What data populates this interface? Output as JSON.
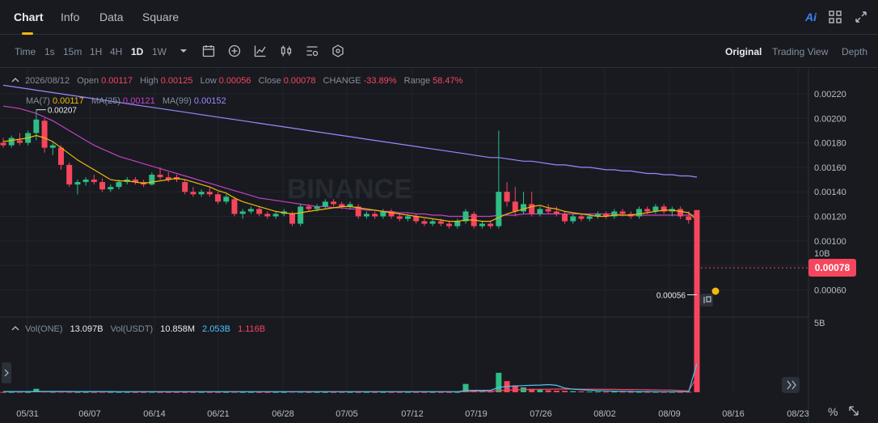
{
  "tabs": [
    {
      "label": "Chart",
      "active": true
    },
    {
      "label": "Info",
      "active": false
    },
    {
      "label": "Data",
      "active": false
    },
    {
      "label": "Square",
      "active": false
    }
  ],
  "top_icons": {
    "ai": "Ai"
  },
  "toolbar": {
    "intervals": [
      {
        "label": "Time",
        "active": false
      },
      {
        "label": "1s",
        "active": false
      },
      {
        "label": "15m",
        "active": false
      },
      {
        "label": "1H",
        "active": false
      },
      {
        "label": "4H",
        "active": false
      },
      {
        "label": "1D",
        "active": true
      },
      {
        "label": "1W",
        "active": false
      }
    ],
    "views": [
      {
        "label": "Original",
        "active": true
      },
      {
        "label": "Trading View",
        "active": false
      },
      {
        "label": "Depth",
        "active": false
      }
    ]
  },
  "ohlc": {
    "date": "2026/08/12",
    "open_label": "Open",
    "open": "0.00117",
    "high_label": "High",
    "high": "0.00125",
    "low_label": "Low",
    "low": "0.00056",
    "close_label": "Close",
    "close": "0.00078",
    "change_label": "CHANGE",
    "change": "-33.89%",
    "range_label": "Range",
    "range": "58.47%"
  },
  "ma": {
    "ma7_label": "MA(7)",
    "ma7": "0.00117",
    "ma25_label": "MA(25)",
    "ma25": "0.00121",
    "ma99_label": "MA(99)",
    "ma99": "0.00152"
  },
  "vol": {
    "label1": "Vol(ONE)",
    "value1": "13.097B",
    "label2": "Vol(USDT)",
    "value2": "10.858M",
    "ma1": "2.053B",
    "ma2": "1.116B"
  },
  "current_price": "0.00078",
  "colors": {
    "up": "#2ebd85",
    "down": "#f6465d",
    "ma7": "#f0b90b",
    "ma25": "#c640c6",
    "ma99": "#9a88ff",
    "accent": "#f0b90b"
  },
  "chart_data": {
    "type": "candlestick",
    "y_ticks": [
      "0.00220",
      "0.00200",
      "0.00180",
      "0.00160",
      "0.00140",
      "0.00120",
      "0.00100",
      "0.00080",
      "0.00060"
    ],
    "vol_ticks": [
      "10B",
      "5B"
    ],
    "x_ticks": [
      "05/31",
      "06/07",
      "06/14",
      "06/21",
      "06/28",
      "07/05",
      "07/12",
      "07/19",
      "07/26",
      "08/02",
      "08/09",
      "08/16",
      "08/23"
    ],
    "annotations": {
      "high_label": "0.00207",
      "low_label": "0.00056"
    },
    "candles": [
      {
        "o": 0.0018,
        "h": 0.00184,
        "l": 0.00176,
        "c": 0.00178
      },
      {
        "o": 0.00178,
        "h": 0.00186,
        "l": 0.00176,
        "c": 0.00184
      },
      {
        "o": 0.00182,
        "h": 0.00188,
        "l": 0.00178,
        "c": 0.0018
      },
      {
        "o": 0.0018,
        "h": 0.0019,
        "l": 0.00178,
        "c": 0.00188
      },
      {
        "o": 0.00188,
        "h": 0.00207,
        "l": 0.00182,
        "c": 0.00199
      },
      {
        "o": 0.00198,
        "h": 0.002,
        "l": 0.00172,
        "c": 0.00176
      },
      {
        "o": 0.00176,
        "h": 0.0018,
        "l": 0.0017,
        "c": 0.00178
      },
      {
        "o": 0.00176,
        "h": 0.00178,
        "l": 0.00158,
        "c": 0.00162
      },
      {
        "o": 0.00162,
        "h": 0.00164,
        "l": 0.00144,
        "c": 0.00146
      },
      {
        "o": 0.00146,
        "h": 0.0015,
        "l": 0.00138,
        "c": 0.00148
      },
      {
        "o": 0.00148,
        "h": 0.00152,
        "l": 0.00145,
        "c": 0.0015
      },
      {
        "o": 0.0015,
        "h": 0.00154,
        "l": 0.00146,
        "c": 0.00148
      },
      {
        "o": 0.00148,
        "h": 0.00151,
        "l": 0.0014,
        "c": 0.00142
      },
      {
        "o": 0.00142,
        "h": 0.00146,
        "l": 0.0014,
        "c": 0.00144
      },
      {
        "o": 0.00144,
        "h": 0.0015,
        "l": 0.00142,
        "c": 0.00148
      },
      {
        "o": 0.00148,
        "h": 0.00152,
        "l": 0.00146,
        "c": 0.0015
      },
      {
        "o": 0.0015,
        "h": 0.00152,
        "l": 0.00146,
        "c": 0.00148
      },
      {
        "o": 0.00148,
        "h": 0.0015,
        "l": 0.00144,
        "c": 0.00146
      },
      {
        "o": 0.00146,
        "h": 0.00156,
        "l": 0.00145,
        "c": 0.00154
      },
      {
        "o": 0.00154,
        "h": 0.0016,
        "l": 0.0015,
        "c": 0.00152
      },
      {
        "o": 0.00152,
        "h": 0.00156,
        "l": 0.00148,
        "c": 0.0015
      },
      {
        "o": 0.00152,
        "h": 0.00154,
        "l": 0.00148,
        "c": 0.0015
      },
      {
        "o": 0.00148,
        "h": 0.0015,
        "l": 0.00138,
        "c": 0.0014
      },
      {
        "o": 0.0014,
        "h": 0.00144,
        "l": 0.00136,
        "c": 0.00138
      },
      {
        "o": 0.00138,
        "h": 0.00142,
        "l": 0.00136,
        "c": 0.0014
      },
      {
        "o": 0.0014,
        "h": 0.00144,
        "l": 0.00136,
        "c": 0.00138
      },
      {
        "o": 0.00138,
        "h": 0.0014,
        "l": 0.0013,
        "c": 0.00132
      },
      {
        "o": 0.00132,
        "h": 0.00138,
        "l": 0.0013,
        "c": 0.00136
      },
      {
        "o": 0.00134,
        "h": 0.00136,
        "l": 0.0012,
        "c": 0.00122
      },
      {
        "o": 0.00122,
        "h": 0.00126,
        "l": 0.00118,
        "c": 0.00124
      },
      {
        "o": 0.00124,
        "h": 0.00128,
        "l": 0.00122,
        "c": 0.00126
      },
      {
        "o": 0.00126,
        "h": 0.00128,
        "l": 0.0012,
        "c": 0.00122
      },
      {
        "o": 0.00122,
        "h": 0.00124,
        "l": 0.00118,
        "c": 0.0012
      },
      {
        "o": 0.0012,
        "h": 0.00124,
        "l": 0.00118,
        "c": 0.00122
      },
      {
        "o": 0.00122,
        "h": 0.00126,
        "l": 0.0012,
        "c": 0.00124
      },
      {
        "o": 0.00122,
        "h": 0.00124,
        "l": 0.00112,
        "c": 0.00114
      },
      {
        "o": 0.00114,
        "h": 0.0013,
        "l": 0.00112,
        "c": 0.00128
      },
      {
        "o": 0.00128,
        "h": 0.0013,
        "l": 0.00124,
        "c": 0.00126
      },
      {
        "o": 0.00126,
        "h": 0.0013,
        "l": 0.00124,
        "c": 0.00128
      },
      {
        "o": 0.00128,
        "h": 0.00134,
        "l": 0.00126,
        "c": 0.00132
      },
      {
        "o": 0.00132,
        "h": 0.00134,
        "l": 0.00128,
        "c": 0.0013
      },
      {
        "o": 0.0013,
        "h": 0.00132,
        "l": 0.00126,
        "c": 0.00128
      },
      {
        "o": 0.00128,
        "h": 0.00132,
        "l": 0.00126,
        "c": 0.0013
      },
      {
        "o": 0.00128,
        "h": 0.0013,
        "l": 0.00118,
        "c": 0.0012
      },
      {
        "o": 0.0012,
        "h": 0.00124,
        "l": 0.00118,
        "c": 0.00122
      },
      {
        "o": 0.00122,
        "h": 0.00124,
        "l": 0.00118,
        "c": 0.0012
      },
      {
        "o": 0.0012,
        "h": 0.00126,
        "l": 0.00118,
        "c": 0.00124
      },
      {
        "o": 0.00124,
        "h": 0.00126,
        "l": 0.00118,
        "c": 0.0012
      },
      {
        "o": 0.0012,
        "h": 0.00122,
        "l": 0.00116,
        "c": 0.00118
      },
      {
        "o": 0.00118,
        "h": 0.00122,
        "l": 0.00116,
        "c": 0.0012
      },
      {
        "o": 0.0012,
        "h": 0.00122,
        "l": 0.00114,
        "c": 0.00116
      },
      {
        "o": 0.00116,
        "h": 0.00118,
        "l": 0.00112,
        "c": 0.00114
      },
      {
        "o": 0.00114,
        "h": 0.00118,
        "l": 0.00112,
        "c": 0.00116
      },
      {
        "o": 0.00116,
        "h": 0.00118,
        "l": 0.00112,
        "c": 0.00114
      },
      {
        "o": 0.00114,
        "h": 0.00116,
        "l": 0.0011,
        "c": 0.00112
      },
      {
        "o": 0.00112,
        "h": 0.00118,
        "l": 0.0011,
        "c": 0.00116
      },
      {
        "o": 0.00116,
        "h": 0.00126,
        "l": 0.00114,
        "c": 0.00124
      },
      {
        "o": 0.00122,
        "h": 0.00124,
        "l": 0.0011,
        "c": 0.00112
      },
      {
        "o": 0.00112,
        "h": 0.00116,
        "l": 0.0011,
        "c": 0.00114
      },
      {
        "o": 0.00114,
        "h": 0.00116,
        "l": 0.0011,
        "c": 0.00112
      },
      {
        "o": 0.00112,
        "h": 0.0019,
        "l": 0.0011,
        "c": 0.0014
      },
      {
        "o": 0.0014,
        "h": 0.00148,
        "l": 0.00128,
        "c": 0.00132
      },
      {
        "o": 0.00132,
        "h": 0.00144,
        "l": 0.0012,
        "c": 0.00124
      },
      {
        "o": 0.00124,
        "h": 0.0014,
        "l": 0.00122,
        "c": 0.0013
      },
      {
        "o": 0.0013,
        "h": 0.0014,
        "l": 0.0012,
        "c": 0.00122
      },
      {
        "o": 0.00122,
        "h": 0.00128,
        "l": 0.0012,
        "c": 0.00126
      },
      {
        "o": 0.00126,
        "h": 0.0013,
        "l": 0.00122,
        "c": 0.00124
      },
      {
        "o": 0.00124,
        "h": 0.00128,
        "l": 0.0012,
        "c": 0.00122
      },
      {
        "o": 0.00122,
        "h": 0.00124,
        "l": 0.00114,
        "c": 0.00116
      },
      {
        "o": 0.00116,
        "h": 0.00122,
        "l": 0.00114,
        "c": 0.0012
      },
      {
        "o": 0.0012,
        "h": 0.00122,
        "l": 0.00116,
        "c": 0.00118
      },
      {
        "o": 0.00118,
        "h": 0.00122,
        "l": 0.00116,
        "c": 0.0012
      },
      {
        "o": 0.0012,
        "h": 0.00124,
        "l": 0.00118,
        "c": 0.00122
      },
      {
        "o": 0.00122,
        "h": 0.00124,
        "l": 0.00118,
        "c": 0.0012
      },
      {
        "o": 0.0012,
        "h": 0.00126,
        "l": 0.00118,
        "c": 0.00124
      },
      {
        "o": 0.00124,
        "h": 0.00126,
        "l": 0.0012,
        "c": 0.00122
      },
      {
        "o": 0.00122,
        "h": 0.00124,
        "l": 0.00118,
        "c": 0.0012
      },
      {
        "o": 0.0012,
        "h": 0.00128,
        "l": 0.00118,
        "c": 0.00126
      },
      {
        "o": 0.00126,
        "h": 0.00128,
        "l": 0.00122,
        "c": 0.00124
      },
      {
        "o": 0.00124,
        "h": 0.0013,
        "l": 0.00122,
        "c": 0.00128
      },
      {
        "o": 0.00128,
        "h": 0.0013,
        "l": 0.00122,
        "c": 0.00124
      },
      {
        "o": 0.00124,
        "h": 0.00128,
        "l": 0.0012,
        "c": 0.00126
      },
      {
        "o": 0.00126,
        "h": 0.00128,
        "l": 0.00118,
        "c": 0.0012
      },
      {
        "o": 0.0012,
        "h": 0.00124,
        "l": 0.00114,
        "c": 0.00117
      },
      {
        "o": 0.00117,
        "h": 0.00125,
        "l": 0.00056,
        "c": 0.00078
      }
    ],
    "ma7": [
      0.00181,
      0.00182,
      0.00183,
      0.00184,
      0.00186,
      0.00184,
      0.00181,
      0.00176,
      0.00171,
      0.00166,
      0.00162,
      0.00158,
      0.00154,
      0.0015,
      0.00149,
      0.00149,
      0.00148,
      0.00147,
      0.00148,
      0.00149,
      0.0015,
      0.00151,
      0.0015,
      0.00148,
      0.00146,
      0.00144,
      0.00141,
      0.00139,
      0.00135,
      0.00132,
      0.0013,
      0.00128,
      0.00126,
      0.00124,
      0.00123,
      0.00122,
      0.00123,
      0.00124,
      0.00125,
      0.00126,
      0.00127,
      0.00128,
      0.00128,
      0.00127,
      0.00126,
      0.00125,
      0.00124,
      0.00123,
      0.00122,
      0.00121,
      0.0012,
      0.00119,
      0.00118,
      0.00117,
      0.00116,
      0.00116,
      0.00117,
      0.00117,
      0.00116,
      0.00116,
      0.00119,
      0.00122,
      0.00124,
      0.00126,
      0.00128,
      0.00129,
      0.00127,
      0.00126,
      0.00124,
      0.00123,
      0.00122,
      0.00121,
      0.0012,
      0.0012,
      0.00121,
      0.00121,
      0.00121,
      0.00122,
      0.00123,
      0.00124,
      0.00125,
      0.00125,
      0.00124,
      0.00123,
      0.00117
    ],
    "ma25": [
      0.0021,
      0.00209,
      0.00208,
      0.00206,
      0.00204,
      0.00201,
      0.00198,
      0.00194,
      0.0019,
      0.00186,
      0.00182,
      0.00178,
      0.00175,
      0.00172,
      0.00169,
      0.00167,
      0.00165,
      0.00163,
      0.00161,
      0.00159,
      0.00157,
      0.00155,
      0.00153,
      0.00151,
      0.00149,
      0.00147,
      0.00145,
      0.00143,
      0.00141,
      0.00139,
      0.00137,
      0.00135,
      0.00134,
      0.00133,
      0.00132,
      0.00131,
      0.0013,
      0.00129,
      0.00128,
      0.00128,
      0.00127,
      0.00127,
      0.00126,
      0.00126,
      0.00125,
      0.00125,
      0.00124,
      0.00124,
      0.00123,
      0.00123,
      0.00122,
      0.00122,
      0.00121,
      0.00121,
      0.0012,
      0.0012,
      0.0012,
      0.0012,
      0.0012,
      0.0012,
      0.00121,
      0.00121,
      0.00121,
      0.00122,
      0.00122,
      0.00122,
      0.00122,
      0.00122,
      0.00122,
      0.00122,
      0.00122,
      0.00122,
      0.00122,
      0.00122,
      0.00122,
      0.00121,
      0.00121,
      0.00121,
      0.00121,
      0.00121,
      0.00121,
      0.00121,
      0.00121,
      0.00121,
      0.00121
    ],
    "ma99": [
      0.00227,
      0.00226,
      0.00225,
      0.00224,
      0.00223,
      0.00222,
      0.00221,
      0.0022,
      0.00219,
      0.00218,
      0.00217,
      0.00216,
      0.00215,
      0.00214,
      0.00213,
      0.00212,
      0.00211,
      0.0021,
      0.00209,
      0.00208,
      0.00207,
      0.00206,
      0.00205,
      0.00204,
      0.00203,
      0.00202,
      0.00201,
      0.002,
      0.00199,
      0.00198,
      0.00197,
      0.00196,
      0.00195,
      0.00194,
      0.00193,
      0.00192,
      0.00191,
      0.0019,
      0.00189,
      0.00188,
      0.00187,
      0.00186,
      0.00185,
      0.00184,
      0.00183,
      0.00182,
      0.00181,
      0.0018,
      0.00179,
      0.00178,
      0.00177,
      0.00176,
      0.00175,
      0.00174,
      0.00173,
      0.00172,
      0.00171,
      0.0017,
      0.00169,
      0.00168,
      0.00168,
      0.00167,
      0.00166,
      0.00165,
      0.00165,
      0.00164,
      0.00163,
      0.00162,
      0.00162,
      0.00161,
      0.0016,
      0.0016,
      0.00159,
      0.00158,
      0.00158,
      0.00157,
      0.00157,
      0.00156,
      0.00155,
      0.00155,
      0.00154,
      0.00154,
      0.00153,
      0.00153,
      0.00152
    ],
    "volumes": [
      0.02,
      0.02,
      0.03,
      0.02,
      0.25,
      0.05,
      0.03,
      0.04,
      0.03,
      0.02,
      0.02,
      0.02,
      0.03,
      0.02,
      0.02,
      0.02,
      0.02,
      0.02,
      0.03,
      0.02,
      0.02,
      0.02,
      0.02,
      0.02,
      0.02,
      0.02,
      0.02,
      0.02,
      0.03,
      0.02,
      0.02,
      0.02,
      0.02,
      0.02,
      0.02,
      0.04,
      0.03,
      0.02,
      0.02,
      0.02,
      0.02,
      0.02,
      0.02,
      0.02,
      0.02,
      0.02,
      0.02,
      0.02,
      0.02,
      0.02,
      0.02,
      0.02,
      0.02,
      0.02,
      0.02,
      0.02,
      0.6,
      0.15,
      0.08,
      0.05,
      1.4,
      0.8,
      0.5,
      0.35,
      0.25,
      0.2,
      0.15,
      0.12,
      0.1,
      0.08,
      0.06,
      0.05,
      0.05,
      0.04,
      0.04,
      0.04,
      0.03,
      0.03,
      0.03,
      0.03,
      0.03,
      0.03,
      0.03,
      0.04,
      13.097
    ],
    "vol_ma1": [
      0.05,
      0.05,
      0.05,
      0.05,
      0.06,
      0.06,
      0.06,
      0.06,
      0.06,
      0.05,
      0.05,
      0.05,
      0.05,
      0.05,
      0.04,
      0.04,
      0.04,
      0.04,
      0.04,
      0.04,
      0.04,
      0.04,
      0.04,
      0.04,
      0.04,
      0.04,
      0.04,
      0.04,
      0.04,
      0.04,
      0.04,
      0.04,
      0.04,
      0.04,
      0.04,
      0.04,
      0.04,
      0.04,
      0.04,
      0.04,
      0.04,
      0.04,
      0.04,
      0.04,
      0.04,
      0.04,
      0.04,
      0.04,
      0.04,
      0.04,
      0.04,
      0.04,
      0.04,
      0.04,
      0.04,
      0.04,
      0.12,
      0.14,
      0.14,
      0.14,
      0.35,
      0.42,
      0.45,
      0.48,
      0.5,
      0.52,
      0.55,
      0.5,
      0.3,
      0.22,
      0.18,
      0.15,
      0.12,
      0.1,
      0.08,
      0.07,
      0.06,
      0.05,
      0.05,
      0.04,
      0.04,
      0.04,
      0.04,
      0.04,
      2.053
    ],
    "vol_ma2": [
      0.04,
      0.04,
      0.04,
      0.04,
      0.04,
      0.04,
      0.04,
      0.04,
      0.04,
      0.04,
      0.04,
      0.04,
      0.04,
      0.04,
      0.04,
      0.04,
      0.04,
      0.04,
      0.04,
      0.04,
      0.04,
      0.04,
      0.04,
      0.04,
      0.04,
      0.04,
      0.04,
      0.04,
      0.04,
      0.04,
      0.04,
      0.04,
      0.04,
      0.04,
      0.04,
      0.04,
      0.04,
      0.04,
      0.04,
      0.04,
      0.04,
      0.04,
      0.04,
      0.04,
      0.04,
      0.04,
      0.04,
      0.04,
      0.04,
      0.04,
      0.04,
      0.04,
      0.04,
      0.04,
      0.04,
      0.04,
      0.06,
      0.07,
      0.07,
      0.07,
      0.12,
      0.15,
      0.17,
      0.19,
      0.2,
      0.21,
      0.22,
      0.23,
      0.23,
      0.23,
      0.22,
      0.22,
      0.22,
      0.21,
      0.21,
      0.2,
      0.2,
      0.19,
      0.18,
      0.17,
      0.16,
      0.15,
      0.12,
      0.1,
      1.116
    ]
  }
}
